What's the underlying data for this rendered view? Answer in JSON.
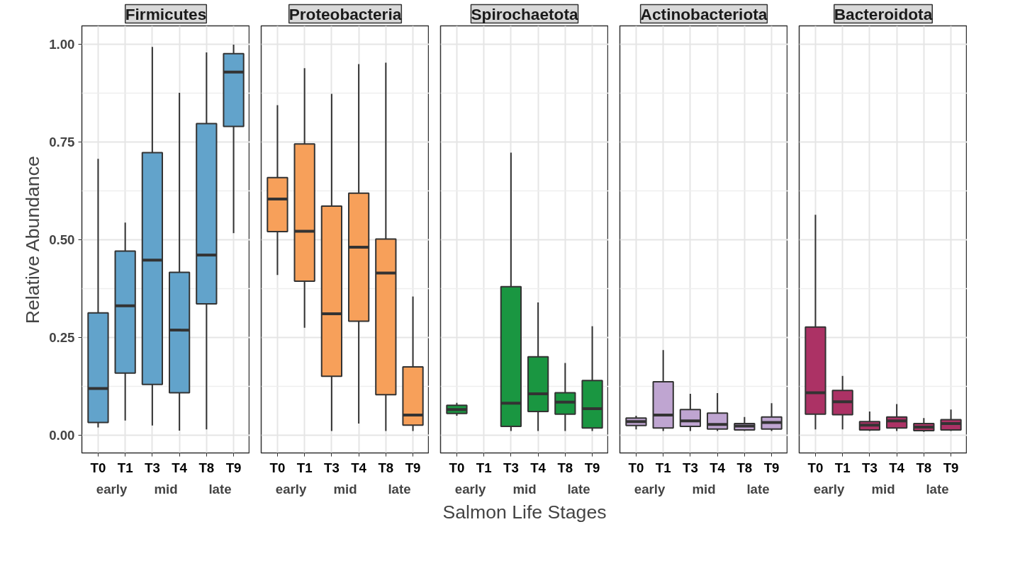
{
  "chart_data": [
    {
      "type": "box",
      "title": "Firmicutes",
      "ylabel": "Relative Abundance",
      "categories": [
        "T0",
        "T1",
        "T3",
        "T4",
        "T8",
        "T9"
      ],
      "annotations": [
        "early",
        "mid",
        "late"
      ],
      "color": "#62a3cb",
      "grid": true,
      "ylim": [
        -0.045,
        1.047
      ],
      "yticks": [
        {
          "value": 0,
          "label": "0.00"
        },
        {
          "value": 0.25,
          "label": "0.25"
        },
        {
          "value": 0.5,
          "label": "0.50"
        },
        {
          "value": 0.75,
          "label": "0.75"
        },
        {
          "value": 1,
          "label": "1.00"
        }
      ],
      "boxes": [
        {
          "low": 0.02,
          "q1": 0.033,
          "median": 0.12,
          "q3": 0.313,
          "high": 0.707
        },
        {
          "low": 0.038,
          "q1": 0.159,
          "median": 0.331,
          "q3": 0.471,
          "high": 0.544
        },
        {
          "low": 0.025,
          "q1": 0.13,
          "median": 0.448,
          "q3": 0.723,
          "high": 0.993
        },
        {
          "low": 0.012,
          "q1": 0.109,
          "median": 0.269,
          "q3": 0.417,
          "high": 0.876
        },
        {
          "low": 0.015,
          "q1": 0.336,
          "median": 0.461,
          "q3": 0.797,
          "high": 0.979
        },
        {
          "low": 0.517,
          "q1": 0.79,
          "median": 0.929,
          "q3": 0.976,
          "high": 0.999
        }
      ]
    },
    {
      "type": "box",
      "title": "Proteobacteria",
      "categories": [
        "T0",
        "T1",
        "T3",
        "T4",
        "T8",
        "T9"
      ],
      "annotations": [
        "early",
        "mid",
        "late"
      ],
      "color": "#f7a05a",
      "grid": true,
      "tick_labels": "x",
      "ylim": [
        -0.045,
        1.047
      ],
      "yticks": [
        0,
        0.25,
        0.5,
        0.75,
        1
      ],
      "boxes": [
        {
          "low": 0.41,
          "q1": 0.521,
          "median": 0.604,
          "q3": 0.659,
          "high": 0.844
        },
        {
          "low": 0.275,
          "q1": 0.394,
          "median": 0.522,
          "q3": 0.745,
          "high": 0.939
        },
        {
          "low": 0.011,
          "q1": 0.151,
          "median": 0.311,
          "q3": 0.586,
          "high": 0.873
        },
        {
          "low": 0.03,
          "q1": 0.292,
          "median": 0.481,
          "q3": 0.619,
          "high": 0.949
        },
        {
          "low": 0.011,
          "q1": 0.104,
          "median": 0.415,
          "q3": 0.502,
          "high": 0.953
        },
        {
          "low": 0.011,
          "q1": 0.026,
          "median": 0.052,
          "q3": 0.175,
          "high": 0.355
        }
      ]
    },
    {
      "type": "box",
      "title": "Spirochaetota",
      "xlabel": "Salmon Life Stages",
      "categories": [
        "T0",
        "T1",
        "T3",
        "T4",
        "T8",
        "T9"
      ],
      "annotations": [
        "early",
        "mid",
        "late"
      ],
      "color": "#1a9641",
      "grid": true,
      "tick_labels": "x",
      "ylim": [
        -0.045,
        1.047
      ],
      "yticks": [
        0,
        0.25,
        0.5,
        0.75,
        1
      ],
      "boxes": [
        {
          "low": 0.05,
          "q1": 0.056,
          "median": 0.066,
          "q3": 0.077,
          "high": 0.083
        },
        null,
        {
          "low": 0.011,
          "q1": 0.023,
          "median": 0.082,
          "q3": 0.38,
          "high": 0.723
        },
        {
          "low": 0.011,
          "q1": 0.061,
          "median": 0.106,
          "q3": 0.201,
          "high": 0.34
        },
        {
          "low": 0.011,
          "q1": 0.054,
          "median": 0.085,
          "q3": 0.109,
          "high": 0.185
        },
        {
          "low": 0.011,
          "q1": 0.019,
          "median": 0.068,
          "q3": 0.14,
          "high": 0.279
        }
      ]
    },
    {
      "type": "box",
      "title": "Actinobacteriota",
      "categories": [
        "T0",
        "T1",
        "T3",
        "T4",
        "T8",
        "T9"
      ],
      "annotations": [
        "early",
        "mid",
        "late"
      ],
      "color": "#bfa5d1",
      "grid": true,
      "tick_labels": "x",
      "ylim": [
        -0.045,
        1.047
      ],
      "yticks": [
        0,
        0.25,
        0.5,
        0.75,
        1
      ],
      "boxes": [
        {
          "low": 0.015,
          "q1": 0.025,
          "median": 0.035,
          "q3": 0.044,
          "high": 0.05
        },
        {
          "low": 0.011,
          "q1": 0.019,
          "median": 0.052,
          "q3": 0.137,
          "high": 0.218
        },
        {
          "low": 0.011,
          "q1": 0.023,
          "median": 0.037,
          "q3": 0.066,
          "high": 0.106
        },
        {
          "low": 0.011,
          "q1": 0.016,
          "median": 0.028,
          "q3": 0.057,
          "high": 0.108
        },
        {
          "low": 0.011,
          "q1": 0.014,
          "median": 0.024,
          "q3": 0.03,
          "high": 0.047
        },
        {
          "low": 0.011,
          "q1": 0.016,
          "median": 0.033,
          "q3": 0.047,
          "high": 0.082
        }
      ]
    },
    {
      "type": "box",
      "title": "Bacteroidota",
      "categories": [
        "T0",
        "T1",
        "T3",
        "T4",
        "T8",
        "T9"
      ],
      "annotations": [
        "early",
        "mid",
        "late"
      ],
      "color": "#ac3265",
      "grid": true,
      "tick_labels": "x",
      "ylim": [
        -0.045,
        1.047
      ],
      "yticks": [
        0,
        0.25,
        0.5,
        0.75,
        1
      ],
      "boxes": [
        {
          "low": 0.015,
          "q1": 0.054,
          "median": 0.109,
          "q3": 0.277,
          "high": 0.564
        },
        {
          "low": 0.015,
          "q1": 0.053,
          "median": 0.086,
          "q3": 0.115,
          "high": 0.152
        },
        {
          "low": 0.011,
          "q1": 0.014,
          "median": 0.026,
          "q3": 0.035,
          "high": 0.061
        },
        {
          "low": 0.011,
          "q1": 0.019,
          "median": 0.037,
          "q3": 0.047,
          "high": 0.08
        },
        {
          "low": 0.009,
          "q1": 0.012,
          "median": 0.021,
          "q3": 0.03,
          "high": 0.044
        },
        {
          "low": 0.011,
          "q1": 0.014,
          "median": 0.03,
          "q3": 0.04,
          "high": 0.066
        }
      ]
    }
  ]
}
